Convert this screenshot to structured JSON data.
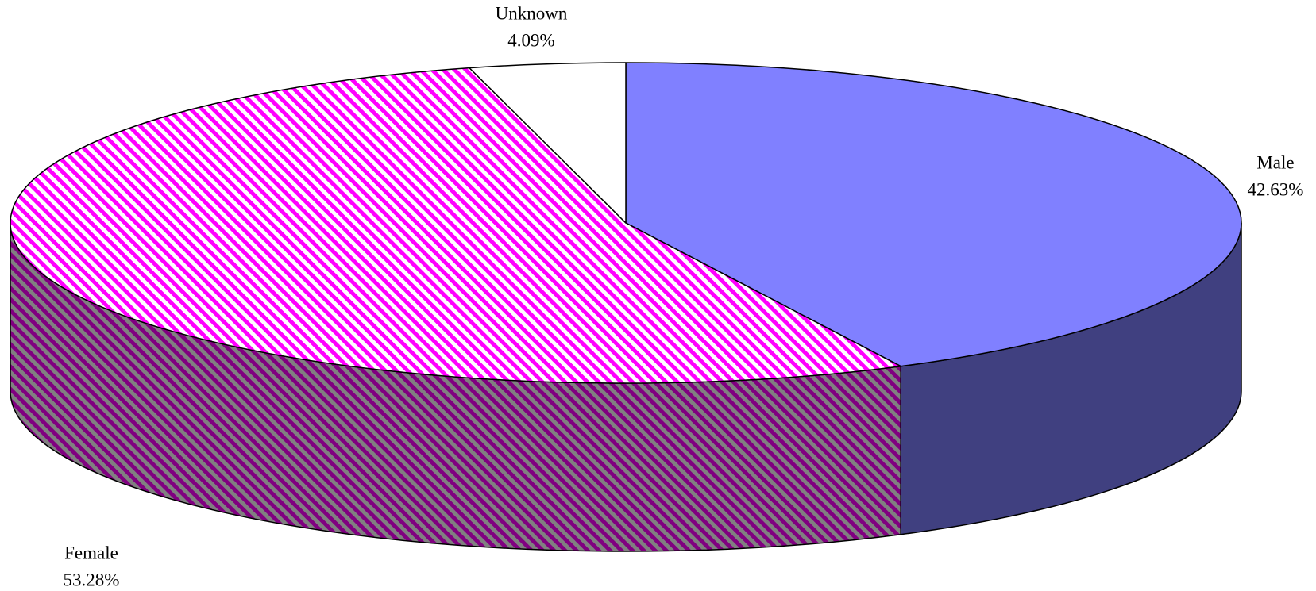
{
  "chart_data": {
    "type": "pie3d",
    "categories": [
      "Male",
      "Female",
      "Unknown"
    ],
    "values": [
      42.63,
      53.28,
      4.09
    ],
    "value_labels": [
      "42.63%",
      "53.28%",
      "4.09%"
    ],
    "colors": [
      "#8080ff",
      "#ff00ff",
      "#ffffff"
    ],
    "hatched": [
      false,
      true,
      false
    ],
    "start_angle": 0,
    "direction": "clockwise"
  }
}
